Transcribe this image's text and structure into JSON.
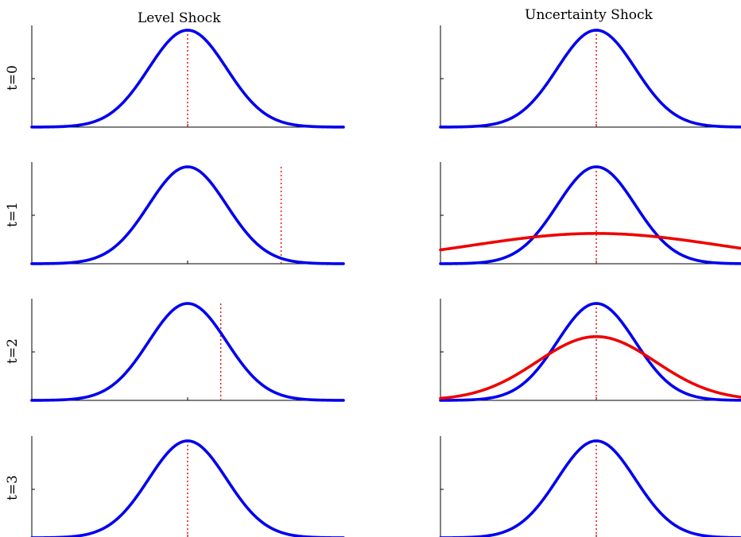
{
  "figure": {
    "columns": [
      "Level Shock",
      "Uncertainty Shock"
    ],
    "rows": [
      "t=0",
      "t=1",
      "t=2",
      "t=3"
    ]
  },
  "colors": {
    "baseline": "#0000ee",
    "shock": "#ee0000",
    "marker": "#ee0000",
    "axis": "#000000"
  },
  "chart_data": [
    {
      "type": "line",
      "column": "Level Shock",
      "row": "t=0",
      "xlim": [
        -4,
        4
      ],
      "ylim": [
        0,
        1
      ],
      "series": [
        {
          "role": "baseline",
          "mean": 0,
          "sd": 1,
          "color": "#0000ee"
        }
      ],
      "marker_x": 0,
      "marker_style": "dotted"
    },
    {
      "type": "line",
      "column": "Level Shock",
      "row": "t=1",
      "xlim": [
        -4,
        4
      ],
      "ylim": [
        0,
        1
      ],
      "series": [
        {
          "role": "baseline",
          "mean": 0,
          "sd": 1,
          "color": "#0000ee"
        }
      ],
      "marker_x": 2.4,
      "marker_style": "dotted"
    },
    {
      "type": "line",
      "column": "Level Shock",
      "row": "t=2",
      "xlim": [
        -4,
        4
      ],
      "ylim": [
        0,
        1
      ],
      "series": [
        {
          "role": "baseline",
          "mean": 0,
          "sd": 1,
          "color": "#0000ee"
        }
      ],
      "marker_x": 0.85,
      "marker_style": "dotted"
    },
    {
      "type": "line",
      "column": "Level Shock",
      "row": "t=3",
      "xlim": [
        -4,
        4
      ],
      "ylim": [
        0,
        1
      ],
      "series": [
        {
          "role": "baseline",
          "mean": 0,
          "sd": 1,
          "color": "#0000ee"
        }
      ],
      "marker_x": 0,
      "marker_style": "dotted"
    },
    {
      "type": "line",
      "column": "Uncertainty Shock",
      "row": "t=0",
      "xlim": [
        -4,
        4
      ],
      "ylim": [
        0,
        1
      ],
      "series": [
        {
          "role": "baseline",
          "mean": 0,
          "sd": 1,
          "color": "#0000ee"
        }
      ],
      "marker_x": 0,
      "marker_style": "dotted"
    },
    {
      "type": "line",
      "column": "Uncertainty Shock",
      "row": "t=1",
      "xlim": [
        -4,
        4
      ],
      "ylim": [
        0,
        1
      ],
      "series": [
        {
          "role": "baseline",
          "mean": 0,
          "sd": 1,
          "color": "#0000ee"
        },
        {
          "role": "shock",
          "mean": 0,
          "sd": 3.2,
          "color": "#ee0000"
        }
      ],
      "marker_x": 0,
      "marker_style": "dotted"
    },
    {
      "type": "line",
      "column": "Uncertainty Shock",
      "row": "t=2",
      "xlim": [
        -4,
        4
      ],
      "ylim": [
        0,
        1
      ],
      "series": [
        {
          "role": "baseline",
          "mean": 0,
          "sd": 1,
          "color": "#0000ee"
        },
        {
          "role": "shock",
          "mean": 0,
          "sd": 1.52,
          "color": "#ee0000"
        }
      ],
      "marker_x": 0,
      "marker_style": "dotted"
    },
    {
      "type": "line",
      "column": "Uncertainty Shock",
      "row": "t=3",
      "xlim": [
        -4,
        4
      ],
      "ylim": [
        0,
        1
      ],
      "series": [
        {
          "role": "baseline",
          "mean": 0,
          "sd": 1,
          "color": "#0000ee"
        }
      ],
      "marker_x": 0,
      "marker_style": "dotted"
    }
  ]
}
